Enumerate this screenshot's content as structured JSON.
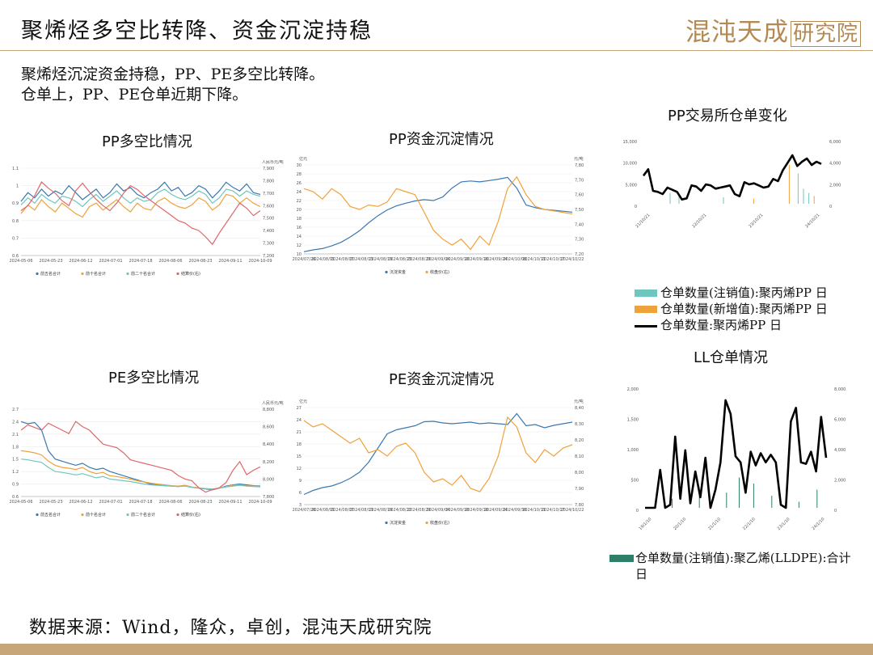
{
  "page": {
    "title": "聚烯烃多空比转降、资金沉淀持稳",
    "logo_main": "混沌天成",
    "logo_box": "研究院",
    "intro_1": "聚烯烃沉淀资金持稳，PP、PE多空比转降。",
    "intro_2": "仓单上，PP、PE仓单近期下降。",
    "source": "数据来源：Wind，隆众，卓创，混沌天成研究院"
  },
  "colors": {
    "blue": "#3a78b0",
    "orange": "#f0a23a",
    "teal": "#6fc6be",
    "red": "#e0666a",
    "gold": "#c7a67a"
  },
  "chart_data": [
    {
      "id": "pp_ls_ratio",
      "type": "line",
      "title": "PP多空比情况",
      "ylabel_right": "人民币元/吨",
      "x_ticks": [
        "2024-05-06",
        "2024-05-23",
        "2024-06-12",
        "2024-07-01",
        "2024-07-18",
        "2024-08-06",
        "2024-08-23",
        "2024-09-11",
        "2024-10-09"
      ],
      "ylim_left": [
        0.6,
        1.1
      ],
      "y_ticks_left": [
        "1.1",
        "1",
        "0.9",
        "0.8",
        "0.7",
        "0.6"
      ],
      "ylim_right": [
        7200,
        7900
      ],
      "y_ticks_right": [
        "7,900",
        "7,800",
        "7,700",
        "7,600",
        "7,500",
        "7,400",
        "7,300",
        "7,200"
      ],
      "series": [
        {
          "name": "前五名合计",
          "color": "#3a78b0",
          "values": [
            0.91,
            0.96,
            0.93,
            0.98,
            0.94,
            0.97,
            0.95,
            1.0,
            0.96,
            0.92,
            0.95,
            0.98,
            0.93,
            0.96,
            1.01,
            0.97,
            0.99,
            0.95,
            0.93,
            0.96,
            0.98,
            1.02,
            0.97,
            0.99,
            0.94,
            0.96,
            1.0,
            0.98,
            0.93,
            0.97,
            1.02,
            0.99,
            0.97,
            1.01,
            0.96,
            0.95
          ]
        },
        {
          "name": "前十名合计",
          "color": "#f0a23a",
          "values": [
            0.84,
            0.89,
            0.86,
            0.92,
            0.88,
            0.85,
            0.9,
            0.87,
            0.84,
            0.82,
            0.88,
            0.9,
            0.86,
            0.89,
            0.92,
            0.88,
            0.85,
            0.9,
            0.87,
            0.86,
            0.91,
            0.93,
            0.9,
            0.88,
            0.87,
            0.89,
            0.93,
            0.91,
            0.86,
            0.89,
            0.95,
            0.94,
            0.9,
            0.93,
            0.9,
            0.88
          ]
        },
        {
          "name": "前二十名合计",
          "color": "#6fc6be",
          "values": [
            0.89,
            0.93,
            0.9,
            0.95,
            0.92,
            0.9,
            0.94,
            0.93,
            0.91,
            0.88,
            0.92,
            0.95,
            0.91,
            0.94,
            0.97,
            0.93,
            0.9,
            0.93,
            0.91,
            0.92,
            0.96,
            0.98,
            0.95,
            0.93,
            0.92,
            0.94,
            0.97,
            0.95,
            0.9,
            0.93,
            0.98,
            0.97,
            0.94,
            0.97,
            0.95,
            0.94
          ]
        },
        {
          "name": "结算价(右)",
          "color": "#e0666a",
          "axis": "right",
          "values": [
            7560,
            7600,
            7680,
            7790,
            7740,
            7700,
            7640,
            7600,
            7720,
            7780,
            7710,
            7650,
            7600,
            7560,
            7620,
            7700,
            7760,
            7730,
            7680,
            7640,
            7600,
            7560,
            7520,
            7480,
            7460,
            7420,
            7400,
            7350,
            7290,
            7380,
            7460,
            7540,
            7620,
            7580,
            7520,
            7560
          ]
        }
      ]
    },
    {
      "id": "pp_funds",
      "type": "line",
      "title": "PP资金沉淀情况",
      "ylabel_left": "亿元",
      "ylabel_right": "元/吨",
      "x_ticks": [
        "2024/07/26",
        "2024/08/01",
        "2024/08/07",
        "2024/08/13",
        "2024/08/19",
        "2024/08/23",
        "2024/08/29",
        "2024/09/04",
        "2024/09/10",
        "2024/09/18",
        "2024/09/24",
        "2024/10/08",
        "2024/10/11",
        "2024/10/17",
        "2024/10/22"
      ],
      "ylim_left": [
        10,
        30
      ],
      "y_ticks_left": [
        "30",
        "28",
        "26",
        "24",
        "22",
        "20",
        "18",
        "16",
        "14",
        "12",
        "10"
      ],
      "ylim_right": [
        7200,
        7800
      ],
      "y_ticks_right": [
        "7,800",
        "7,700",
        "7,600",
        "7,500",
        "7,400",
        "7,300",
        "7,200"
      ],
      "series": [
        {
          "name": "沉淀资金",
          "color": "#3a78b0",
          "values": [
            10.5,
            10.9,
            11.2,
            11.8,
            12.6,
            13.8,
            15.2,
            17.0,
            18.6,
            19.9,
            20.8,
            21.4,
            21.9,
            22.2,
            22.0,
            22.8,
            24.8,
            26.2,
            26.4,
            26.2,
            26.5,
            26.8,
            27.2,
            24.8,
            21.0,
            20.4,
            20.0,
            19.8,
            19.6,
            19.4
          ]
        },
        {
          "name": "收盘价(右)",
          "color": "#f0a23a",
          "axis": "right",
          "values": [
            7640,
            7620,
            7570,
            7640,
            7600,
            7520,
            7500,
            7530,
            7520,
            7550,
            7640,
            7620,
            7600,
            7480,
            7360,
            7300,
            7260,
            7300,
            7230,
            7320,
            7260,
            7420,
            7640,
            7720,
            7600,
            7520,
            7500,
            7490,
            7480,
            7470
          ]
        }
      ]
    },
    {
      "id": "pp_warrants",
      "type": "line",
      "title": "PP交易所仓单变化",
      "x_ticks": [
        "21/10/21",
        "22/10/21",
        "23/10/21",
        "24/10/21"
      ],
      "ylim_left": [
        0,
        15000
      ],
      "y_ticks_left": [
        "15,000",
        "10,000",
        "5,000",
        "0"
      ],
      "ylim_right": [
        0,
        6000
      ],
      "y_ticks_right": [
        "6,000",
        "4,000",
        "2,000",
        "0"
      ],
      "series": [
        {
          "name": "仓单数量(注销值):聚丙烯PP 日",
          "color": "#6fc6be"
        },
        {
          "name": "仓单数量(新增值):聚丙烯PP 日",
          "color": "#f0a23a"
        },
        {
          "name": "仓单数量:聚丙烯PP 日",
          "color": "#000000",
          "axis": "right",
          "values": [
            2600,
            3200,
            1200,
            1100,
            900,
            1500,
            1300,
            1100,
            400,
            500,
            1700,
            1600,
            1200,
            1800,
            1700,
            1400,
            1500,
            1600,
            1700,
            900,
            700,
            2000,
            1800,
            1900,
            1700,
            1500,
            1600,
            2300,
            2100,
            3100,
            3800,
            4500,
            3500,
            3900,
            4200,
            3600,
            3900,
            3700
          ]
        }
      ]
    },
    {
      "id": "pe_ls_ratio",
      "type": "line",
      "title": "PE多空比情况",
      "ylabel_right": "人民币元/吨",
      "x_ticks": [
        "2024-05-06",
        "2024-05-23",
        "2024-06-12",
        "2024-07-01",
        "2024-07-18",
        "2024-08-06",
        "2024-08-23",
        "2024-09-11",
        "2024-10-09"
      ],
      "ylim_left": [
        0.6,
        2.7
      ],
      "y_ticks_left": [
        "2.7",
        "2.4",
        "2.1",
        "1.8",
        "1.5",
        "1.2",
        "0.9",
        "0.6"
      ],
      "ylim_right": [
        7800,
        8800
      ],
      "y_ticks_right": [
        "8,800",
        "8,600",
        "8,400",
        "8,200",
        "8,000",
        "7,800"
      ],
      "series": [
        {
          "name": "前五名合计",
          "color": "#3a78b0",
          "values": [
            2.4,
            2.35,
            2.38,
            2.2,
            1.7,
            1.5,
            1.45,
            1.4,
            1.35,
            1.4,
            1.3,
            1.25,
            1.28,
            1.2,
            1.15,
            1.1,
            1.05,
            1.0,
            0.95,
            0.9,
            0.88,
            0.86,
            0.85,
            0.84,
            0.86,
            0.82,
            0.8,
            0.78,
            0.76,
            0.8,
            0.85,
            0.88,
            0.9,
            0.88,
            0.86,
            0.85
          ]
        },
        {
          "name": "前十名合计",
          "color": "#f0a23a",
          "values": [
            1.7,
            1.68,
            1.65,
            1.6,
            1.45,
            1.35,
            1.3,
            1.28,
            1.25,
            1.3,
            1.2,
            1.15,
            1.18,
            1.1,
            1.08,
            1.05,
            1.02,
            0.98,
            0.95,
            0.92,
            0.9,
            0.88,
            0.86,
            0.85,
            0.87,
            0.83,
            0.81,
            0.79,
            0.77,
            0.8,
            0.84,
            0.87,
            0.88,
            0.86,
            0.85,
            0.84
          ]
        },
        {
          "name": "前二十名合计",
          "color": "#6fc6be",
          "values": [
            1.5,
            1.48,
            1.45,
            1.42,
            1.3,
            1.2,
            1.18,
            1.15,
            1.12,
            1.15,
            1.1,
            1.05,
            1.08,
            1.02,
            1.0,
            0.98,
            0.96,
            0.93,
            0.9,
            0.88,
            0.87,
            0.86,
            0.85,
            0.84,
            0.85,
            0.82,
            0.8,
            0.79,
            0.78,
            0.8,
            0.83,
            0.85,
            0.87,
            0.85,
            0.84,
            0.83
          ]
        },
        {
          "name": "结算价(右)",
          "color": "#e0666a",
          "axis": "right",
          "values": [
            8560,
            8620,
            8590,
            8560,
            8640,
            8600,
            8560,
            8520,
            8660,
            8600,
            8560,
            8480,
            8400,
            8380,
            8360,
            8300,
            8220,
            8200,
            8180,
            8160,
            8140,
            8120,
            8100,
            8040,
            8000,
            7980,
            7900,
            7850,
            7880,
            7900,
            7960,
            8100,
            8200,
            8050,
            8100,
            8140
          ]
        }
      ]
    },
    {
      "id": "pe_funds",
      "type": "line",
      "title": "PE资金沉淀情况",
      "ylabel_left": "亿元",
      "ylabel_right": "元/吨",
      "x_ticks": [
        "2024/07/26",
        "2024/08/01",
        "2024/08/07",
        "2024/08/13",
        "2024/08/19",
        "2024/08/22",
        "2024/08/29",
        "2024/09/04",
        "2024/09/10",
        "2024/09/18",
        "2024/09/24",
        "2024/09/30",
        "2024/10/11",
        "2024/10/17",
        "2024/10/22"
      ],
      "ylim_left": [
        3,
        27
      ],
      "y_ticks_left": [
        "27",
        "24",
        "21",
        "18",
        "15",
        "12",
        "9",
        "6",
        "3"
      ],
      "ylim_right": [
        7800,
        8400
      ],
      "y_ticks_right": [
        "8,400",
        "8,300",
        "8,200",
        "8,100",
        "8,000",
        "7,900",
        "7,800"
      ],
      "series": [
        {
          "name": "沉淀资金",
          "color": "#3a78b0",
          "values": [
            5.5,
            6.5,
            7.2,
            7.6,
            8.4,
            9.5,
            11.0,
            13.5,
            17.0,
            20.5,
            21.5,
            22.0,
            22.5,
            23.5,
            23.6,
            23.2,
            23.0,
            23.2,
            23.4,
            23.0,
            23.2,
            23.0,
            22.8,
            25.5,
            22.5,
            22.8,
            22.0,
            22.6,
            23.0,
            23.4
          ]
        },
        {
          "name": "收盘价(右)",
          "color": "#f0a23a",
          "axis": "right",
          "values": [
            8320,
            8280,
            8300,
            8260,
            8220,
            8180,
            8210,
            8120,
            8140,
            8100,
            8160,
            8180,
            8120,
            8000,
            7940,
            7960,
            7920,
            7980,
            7900,
            7880,
            7960,
            8100,
            8340,
            8280,
            8120,
            8060,
            8140,
            8100,
            8150,
            8170
          ]
        }
      ]
    },
    {
      "id": "ll_warrants",
      "type": "line",
      "title": "LL仓单情况",
      "x_ticks": [
        "19/1/10",
        "20/1/10",
        "21/1/10",
        "22/1/10",
        "23/1/10",
        "24/1/10"
      ],
      "ylim_left": [
        0,
        2000
      ],
      "y_ticks_left": [
        "2,000",
        "1,500",
        "1,000",
        "500",
        "0"
      ],
      "ylim_right": [
        0,
        8000
      ],
      "y_ticks_right": [
        "8,000",
        "6,000",
        "4,000",
        "2,000",
        "0"
      ],
      "series": [
        {
          "name": "仓单数量(注销值):聚乙烯(LLDPE):合计",
          "color": "#2e7f6a",
          "bar_legend": "日"
        },
        {
          "name": "LL仓单",
          "color": "#000000",
          "axis": "right",
          "values": [
            0,
            0,
            0,
            2500,
            0,
            200,
            4700,
            600,
            3800,
            300,
            2400,
            700,
            3300,
            0,
            1200,
            3000,
            7100,
            6200,
            3400,
            3000,
            1000,
            3700,
            2800,
            3600,
            3000,
            3500,
            3000,
            200,
            0,
            5700,
            6600,
            3000,
            2900,
            3700,
            2400,
            6000,
            3300
          ]
        }
      ]
    }
  ],
  "legends": {
    "pp_ls": [
      "前五名合计",
      "前十名合计",
      "前二十名合计",
      "结算价(右)"
    ],
    "pp_funds": [
      "沉淀资金",
      "收盘价(右)"
    ],
    "pe_ls": [
      "前五名合计",
      "前十名合计",
      "前二十名合计",
      "结算价(右)"
    ],
    "pe_funds": [
      "沉淀资金",
      "收盘价(右)"
    ],
    "pp_warrants": [
      "仓单数量(注销值):聚丙烯PP 日",
      "仓单数量(新增值):聚丙烯PP 日",
      "仓单数量:聚丙烯PP 日"
    ],
    "ll_warrants_1": "仓单数量(注销值):聚乙烯(LLDPE):合计",
    "ll_warrants_2": "日"
  }
}
